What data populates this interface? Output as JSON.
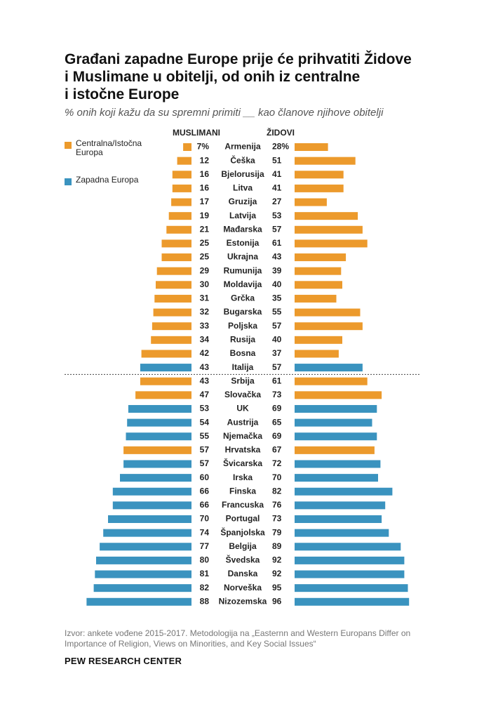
{
  "title": "Građani zapadne Europe prije će prihvatiti Židove\ni Muslimane u obitelji, od onih iz centralne\ni istočne Europe",
  "subtitle": "% onih koji kažu da su spremni primiti __ kao članove njihove obitelji",
  "legend": {
    "central": "Centralna/Istočna Europa",
    "western": "Zapadna Europa"
  },
  "source": "Izvor: ankete vođene 2015-2017. Metodologija na „Easternn and Western Europans Differ on Importance of Religion, Views on Minorities, and Key Social Issues“",
  "organization": "PEW RESEARCH CENTER",
  "colors": {
    "central": "#ec9a2c",
    "western": "#3a93bf"
  },
  "chart_data": {
    "type": "bar",
    "orientation": "horizontal-back-to-back",
    "left_label": "MUSLIMANI",
    "right_label": "ŽIDOVI",
    "first_suffix": "%",
    "divider_after": "Italija",
    "categories": [
      "Armenija",
      "Češka",
      "Bjelorusija",
      "Litva",
      "Gruzija",
      "Latvija",
      "Mađarska",
      "Estonija",
      "Ukrajna",
      "Rumunija",
      "Moldavija",
      "Grčka",
      "Bugarska",
      "Poljska",
      "Rusija",
      "Bosna",
      "Italija",
      "Srbija",
      "Slovačka",
      "UK",
      "Austrija",
      "Njemačka",
      "Hrvatska",
      "Švicarska",
      "Irska",
      "Finska",
      "Francuska",
      "Portugal",
      "Španjolska",
      "Belgija",
      "Švedska",
      "Danska",
      "Norveška",
      "Nizozemska"
    ],
    "region": [
      "central",
      "central",
      "central",
      "central",
      "central",
      "central",
      "central",
      "central",
      "central",
      "central",
      "central",
      "central",
      "central",
      "central",
      "central",
      "central",
      "western",
      "central",
      "central",
      "western",
      "western",
      "western",
      "central",
      "western",
      "western",
      "western",
      "western",
      "western",
      "western",
      "western",
      "western",
      "western",
      "western",
      "western"
    ],
    "series": [
      {
        "name": "Muslimani",
        "values": [
          7,
          12,
          16,
          16,
          17,
          19,
          21,
          25,
          25,
          29,
          30,
          31,
          32,
          33,
          34,
          42,
          43,
          43,
          47,
          53,
          54,
          55,
          57,
          57,
          60,
          66,
          66,
          70,
          74,
          77,
          80,
          81,
          82,
          88
        ]
      },
      {
        "name": "Židovi",
        "values": [
          28,
          51,
          41,
          41,
          27,
          53,
          57,
          61,
          43,
          39,
          40,
          35,
          55,
          57,
          40,
          37,
          57,
          61,
          73,
          69,
          65,
          69,
          67,
          72,
          70,
          82,
          76,
          73,
          79,
          89,
          92,
          92,
          95,
          96
        ]
      }
    ],
    "xlim": [
      0,
      100
    ]
  }
}
